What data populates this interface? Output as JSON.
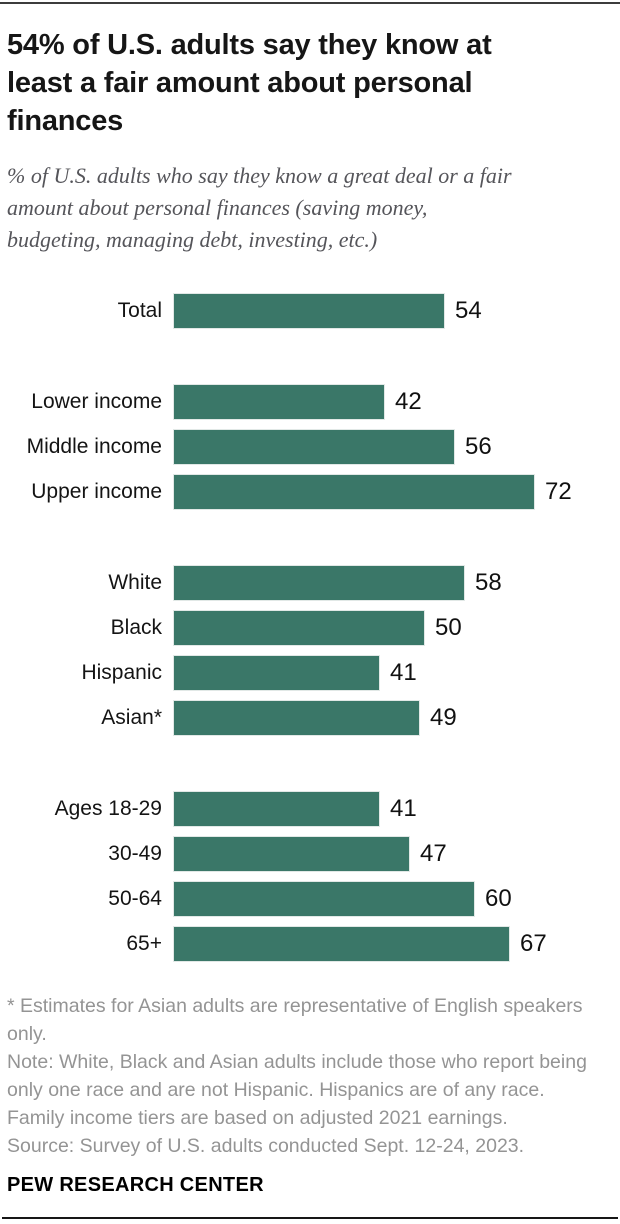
{
  "chart_data": {
    "type": "bar",
    "orientation": "horizontal",
    "title": "54% of U.S. adults say they know at\nleast a fair amount about personal\nfinances",
    "subtitle": "% of U.S. adults who say they know a great deal or a fair\namount about personal finances (saving money,\nbudgeting, managing debt, investing, etc.)",
    "bar_color": "#3a7768",
    "xlim": [
      0,
      72
    ],
    "grid": false,
    "legend": false,
    "groups": [
      {
        "name": "total",
        "rows": [
          {
            "label": "Total",
            "value": 54
          }
        ]
      },
      {
        "name": "income",
        "rows": [
          {
            "label": "Lower income",
            "value": 42
          },
          {
            "label": "Middle income",
            "value": 56
          },
          {
            "label": "Upper income",
            "value": 72
          }
        ]
      },
      {
        "name": "race-ethnicity",
        "rows": [
          {
            "label": "White",
            "value": 58
          },
          {
            "label": "Black",
            "value": 50
          },
          {
            "label": "Hispanic",
            "value": 41
          },
          {
            "label": "Asian*",
            "value": 49
          }
        ]
      },
      {
        "name": "age",
        "rows": [
          {
            "label": "Ages 18-29",
            "value": 41
          },
          {
            "label": "30-49",
            "value": 47
          },
          {
            "label": "50-64",
            "value": 60
          },
          {
            "label": "65+",
            "value": 67
          }
        ]
      }
    ]
  },
  "footer": {
    "asterisk_note": "* Estimates for Asian adults are representative of English speakers only.",
    "note": "Note: White, Black and Asian adults include those who report being only one race and are not Hispanic. Hispanics are of any race. Family income tiers are based on adjusted 2021 earnings.",
    "source": "Source: Survey of U.S. adults conducted Sept. 12-24, 2023.",
    "brand": "PEW RESEARCH CENTER"
  }
}
